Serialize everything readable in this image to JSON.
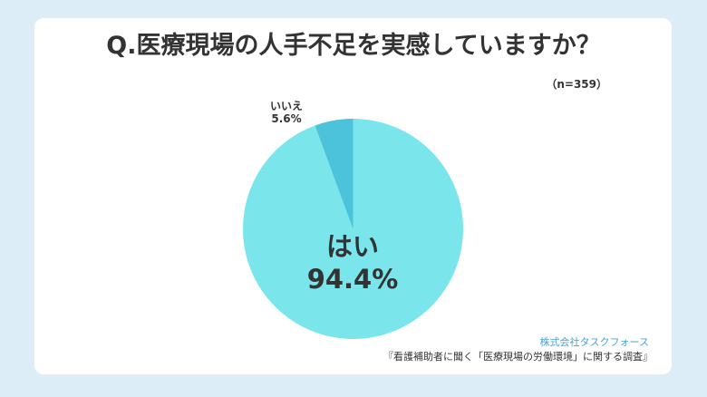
{
  "chart_data": {
    "type": "pie",
    "title": "Q.医療現場の人手不足を実感していますか？",
    "subtitle": "（n=359）",
    "categories": [
      "はい",
      "いいえ"
    ],
    "values": [
      94.4,
      5.6
    ],
    "unit": "%",
    "colors": [
      "#7ae6ec",
      "#4cc2db"
    ],
    "labels": [
      {
        "name": "はい",
        "value": "94.4%",
        "position": "inside"
      },
      {
        "name": "いいえ",
        "value": "5.6%",
        "position": "outside-top-left"
      }
    ],
    "start_angle": "12 o'clock, counter-clockwise small slice"
  },
  "header": {
    "title": "Q.医療現場の人手不足を実感していますか？",
    "sample_size": "（n=359）"
  },
  "labels": {
    "yes_name": "はい",
    "yes_value": "94.4%",
    "no_name": "いいえ",
    "no_value": "5.6%"
  },
  "footer": {
    "company": "株式会社タスクフォース",
    "source": "『看護補助者に聞く「医療現場の労働環境」に関する調査』"
  },
  "colors": {
    "background": "#dcedf8",
    "card": "#ffffff",
    "yes": "#7ae6ec",
    "no": "#4cc2db",
    "text": "#333333",
    "company": "#4aa3d4"
  }
}
